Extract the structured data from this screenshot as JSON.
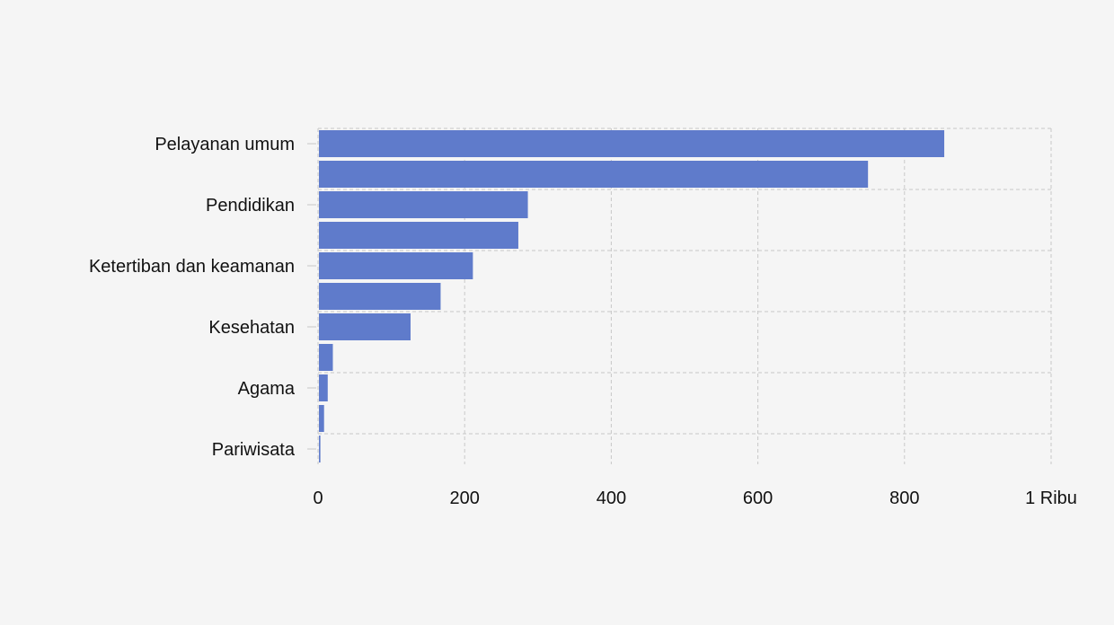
{
  "chart_data": {
    "type": "bar",
    "orientation": "horizontal",
    "categories": [
      "Pelayanan umum",
      "",
      "Pendidikan",
      "",
      "Ketertiban dan keamanan",
      "",
      "Kesehatan",
      "",
      "Agama",
      "",
      "Pariwisata"
    ],
    "values": [
      853,
      749,
      285,
      272,
      210,
      166,
      125,
      19,
      12,
      7,
      2
    ],
    "xlim": [
      0,
      1000
    ],
    "x_ticks": [
      0,
      200,
      400,
      600,
      800,
      1000
    ],
    "x_tick_labels": [
      "0",
      "200",
      "400",
      "600",
      "800",
      "1 Ribu"
    ],
    "title": "",
    "xlabel": "",
    "ylabel": "",
    "grid": true,
    "legend": "none",
    "bar_color": "#5f7bcb"
  }
}
